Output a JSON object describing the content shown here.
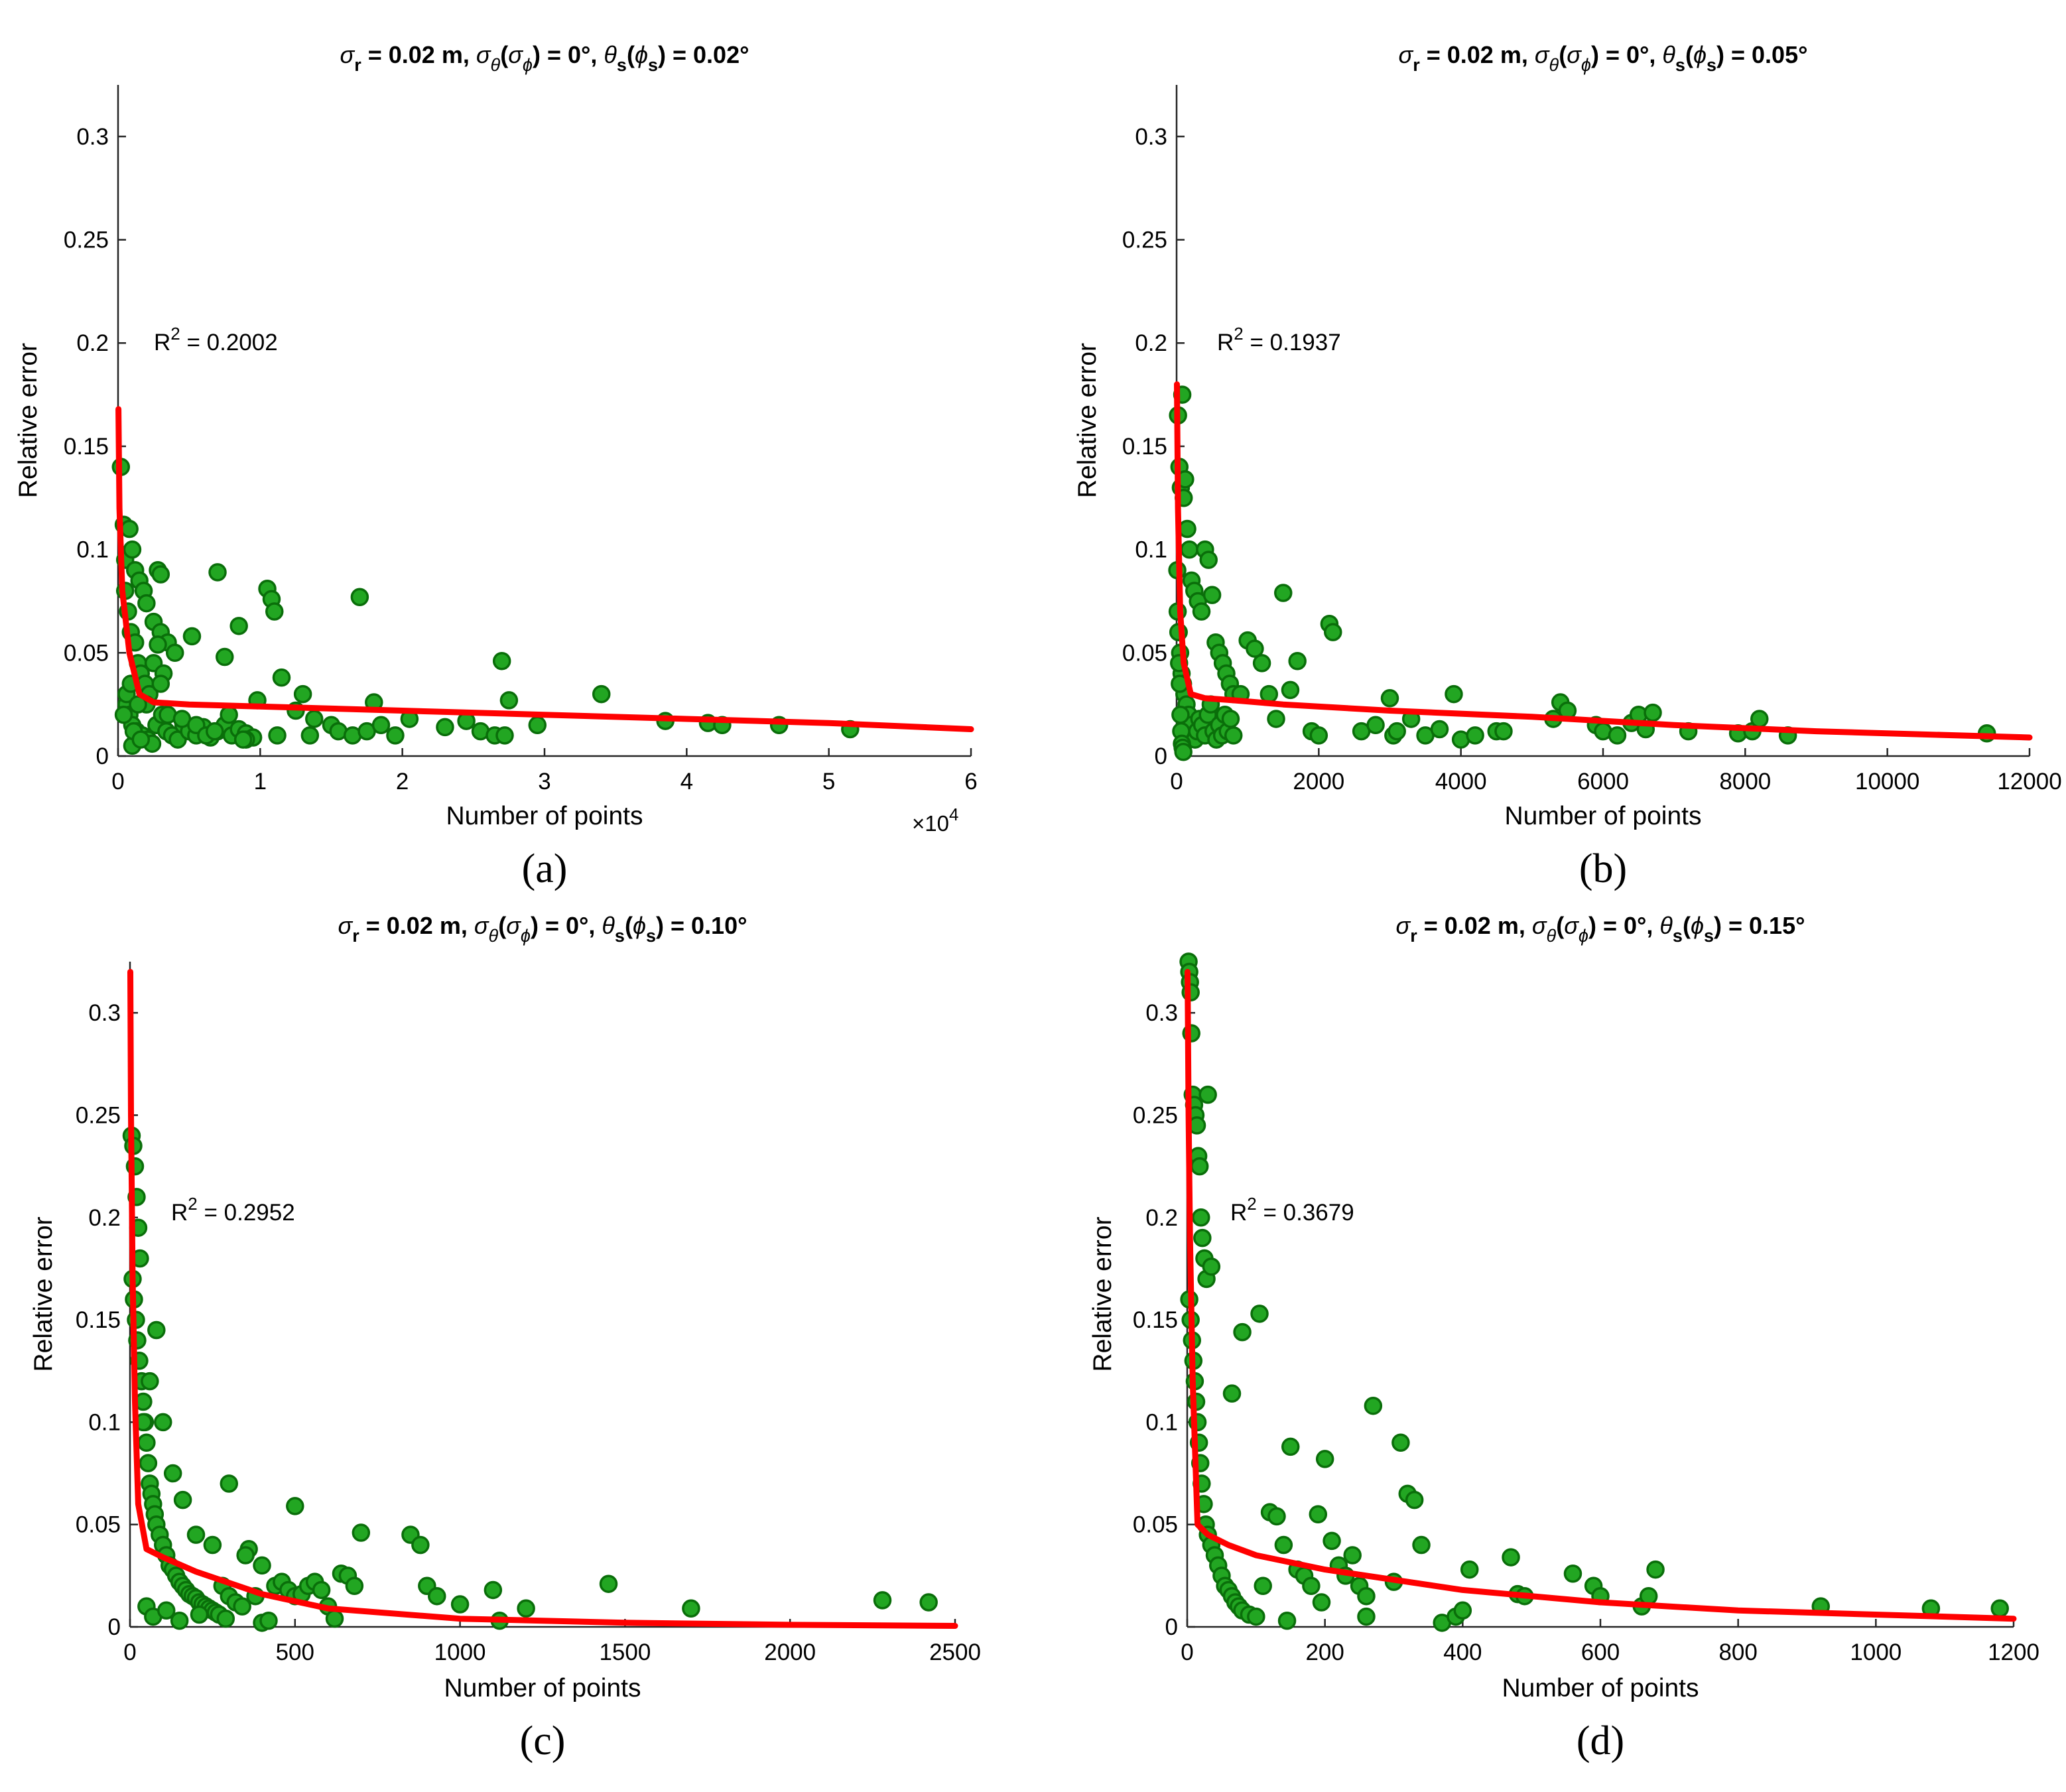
{
  "figure": {
    "panels": [
      "a",
      "b",
      "c",
      "d"
    ]
  },
  "colors": {
    "points_fill": "#22a622",
    "points_stroke": "#0a6e0a",
    "fit_line": "#ff0000",
    "axis": "#262626",
    "text": "#000000"
  },
  "chart_data": [
    {
      "id": "a",
      "type": "scatter",
      "title": "σ_r = 0.02 m, σ_θ(σ_ϕ) = 0°, θ_s(ϕ_s) = 0.02°",
      "title_parts": {
        "sub_r": "r",
        "eq1": " = 0.02 m, ",
        "sub_theta": "θ",
        "sub_phi": "ϕ",
        "eq2": ") = 0°, ",
        "sub_s1": "s",
        "sub_s2": "s",
        "eq3": ") = 0.02°"
      },
      "caption": "(a)",
      "xlabel": "Number of points",
      "ylabel": "Relative error",
      "x_multiplier": "×10",
      "x_multiplier_exp": "4",
      "xlim": [
        0,
        6
      ],
      "ylim": [
        0,
        0.325
      ],
      "xticks": [
        0,
        1,
        2,
        3,
        4,
        5,
        6
      ],
      "xtick_labels": [
        "0",
        "1",
        "2",
        "3",
        "4",
        "5",
        "6"
      ],
      "yticks": [
        0,
        0.05,
        0.1,
        0.15,
        0.2,
        0.25,
        0.3
      ],
      "ytick_labels": [
        "0",
        "0.05",
        "0.1",
        "0.15",
        "0.2",
        "0.25",
        "0.3"
      ],
      "r2_label": "R",
      "r2_exp": "2",
      "r2_value": " = 0.2002",
      "fit": {
        "x": [
          0.003,
          0.01,
          0.03,
          0.08,
          0.15,
          0.25,
          0.5,
          1,
          2,
          3,
          4,
          5,
          6
        ],
        "y": [
          0.168,
          0.12,
          0.08,
          0.05,
          0.03,
          0.026,
          0.025,
          0.024,
          0.022,
          0.02,
          0.018,
          0.016,
          0.013
        ]
      },
      "points": {
        "x": [
          0.02,
          0.04,
          0.05,
          0.08,
          0.1,
          0.12,
          0.15,
          0.18,
          0.2,
          0.25,
          0.3,
          0.35,
          0.4,
          0.05,
          0.07,
          0.09,
          0.12,
          0.14,
          0.16,
          0.19,
          0.22,
          0.25,
          0.28,
          0.3,
          0.32,
          0.06,
          0.08,
          0.1,
          0.13,
          0.17,
          0.21,
          0.24,
          0.27,
          0.31,
          0.34,
          0.38,
          0.42,
          0.46,
          0.5,
          0.55,
          0.6,
          0.65,
          0.7,
          0.75,
          0.8,
          0.85,
          0.9,
          0.95,
          0.28,
          0.3,
          0.52,
          0.7,
          0.75,
          0.85,
          0.9,
          1.05,
          1.08,
          1.1,
          1.15,
          1.3,
          1.35,
          1.5,
          1.55,
          1.65,
          1.7,
          1.75,
          1.8,
          1.85,
          1.95,
          2.05,
          2.3,
          2.45,
          2.55,
          2.65,
          2.7,
          2.72,
          2.75,
          2.95,
          3.4,
          3.85,
          4.15,
          4.25,
          4.65,
          5.15,
          0.1,
          0.2,
          0.35,
          0.45,
          0.55,
          0.62,
          0.68,
          0.78,
          0.88,
          0.98,
          1.12,
          1.25,
          1.38,
          0.04,
          0.06,
          0.09,
          0.11,
          0.14,
          0.16
        ],
        "y": [
          0.14,
          0.112,
          0.095,
          0.11,
          0.1,
          0.09,
          0.085,
          0.08,
          0.074,
          0.065,
          0.06,
          0.055,
          0.05,
          0.08,
          0.07,
          0.06,
          0.055,
          0.045,
          0.04,
          0.035,
          0.03,
          0.045,
          0.09,
          0.088,
          0.04,
          0.025,
          0.02,
          0.015,
          0.012,
          0.01,
          0.008,
          0.006,
          0.015,
          0.02,
          0.012,
          0.01,
          0.008,
          0.015,
          0.012,
          0.01,
          0.014,
          0.009,
          0.012,
          0.015,
          0.01,
          0.013,
          0.011,
          0.009,
          0.054,
          0.035,
          0.058,
          0.089,
          0.048,
          0.063,
          0.008,
          0.081,
          0.076,
          0.07,
          0.038,
          0.03,
          0.01,
          0.015,
          0.012,
          0.01,
          0.077,
          0.012,
          0.026,
          0.015,
          0.01,
          0.018,
          0.014,
          0.017,
          0.012,
          0.01,
          0.046,
          0.01,
          0.027,
          0.015,
          0.03,
          0.017,
          0.016,
          0.015,
          0.015,
          0.013,
          0.005,
          0.025,
          0.02,
          0.018,
          0.015,
          0.01,
          0.012,
          0.02,
          0.008,
          0.027,
          0.01,
          0.022,
          0.018,
          0.02,
          0.03,
          0.035,
          0.012,
          0.025,
          0.008
        ]
      }
    },
    {
      "id": "b",
      "type": "scatter",
      "title": "σ_r = 0.02 m, σ_θ(σ_ϕ) = 0°, θ_s(ϕ_s) = 0.05°",
      "title_parts": {
        "sub_r": "r",
        "eq1": " = 0.02 m, ",
        "sub_theta": "θ",
        "sub_phi": "ϕ",
        "eq2": ") = 0°, ",
        "sub_s1": "s",
        "sub_s2": "s",
        "eq3": ") = 0.05°"
      },
      "caption": "(b)",
      "xlabel": "Number of points",
      "ylabel": "Relative error",
      "xlim": [
        0,
        12000
      ],
      "ylim": [
        0,
        0.325
      ],
      "xticks": [
        0,
        2000,
        4000,
        6000,
        8000,
        10000,
        12000
      ],
      "xtick_labels": [
        "0",
        "2000",
        "4000",
        "6000",
        "8000",
        "10000",
        "12000"
      ],
      "yticks": [
        0,
        0.05,
        0.1,
        0.15,
        0.2,
        0.25,
        0.3
      ],
      "ytick_labels": [
        "0",
        "0.05",
        "0.1",
        "0.15",
        "0.2",
        "0.25",
        "0.3"
      ],
      "r2_label": "R",
      "r2_exp": "2",
      "r2_value": " = 0.1937",
      "fit": {
        "x": [
          5,
          20,
          50,
          100,
          200,
          400,
          800,
          1500,
          3000,
          5000,
          7000,
          9000,
          12000
        ],
        "y": [
          0.18,
          0.12,
          0.07,
          0.045,
          0.03,
          0.028,
          0.027,
          0.025,
          0.022,
          0.019,
          0.015,
          0.012,
          0.009
        ]
      },
      "points": {
        "x": [
          20,
          40,
          60,
          80,
          100,
          120,
          150,
          180,
          210,
          250,
          300,
          350,
          400,
          450,
          500,
          550,
          600,
          650,
          700,
          750,
          800,
          30,
          50,
          70,
          90,
          110,
          140,
          170,
          200,
          230,
          260,
          290,
          320,
          360,
          400,
          440,
          480,
          520,
          560,
          600,
          640,
          680,
          720,
          760,
          800,
          900,
          1000,
          1100,
          1200,
          1300,
          1400,
          1500,
          1600,
          1700,
          1900,
          2000,
          2150,
          2200,
          2600,
          2800,
          3000,
          3050,
          3100,
          3300,
          3500,
          3700,
          3900,
          4000,
          4200,
          4500,
          4600,
          5300,
          5400,
          5500,
          5900,
          6000,
          6200,
          6400,
          6500,
          6600,
          6700,
          7200,
          7900,
          8100,
          8200,
          8600,
          11400,
          10,
          15,
          25,
          35,
          45,
          55,
          65,
          75,
          85,
          95
        ],
        "y": [
          0.165,
          0.14,
          0.13,
          0.175,
          0.125,
          0.134,
          0.11,
          0.1,
          0.085,
          0.08,
          0.075,
          0.07,
          0.1,
          0.095,
          0.078,
          0.055,
          0.05,
          0.045,
          0.04,
          0.035,
          0.03,
          0.06,
          0.05,
          0.04,
          0.035,
          0.03,
          0.025,
          0.02,
          0.015,
          0.01,
          0.008,
          0.012,
          0.018,
          0.015,
          0.01,
          0.02,
          0.025,
          0.012,
          0.008,
          0.015,
          0.01,
          0.02,
          0.012,
          0.018,
          0.01,
          0.03,
          0.056,
          0.052,
          0.045,
          0.03,
          0.018,
          0.079,
          0.032,
          0.046,
          0.012,
          0.01,
          0.064,
          0.06,
          0.012,
          0.015,
          0.028,
          0.01,
          0.012,
          0.018,
          0.01,
          0.013,
          0.03,
          0.008,
          0.01,
          0.012,
          0.012,
          0.018,
          0.026,
          0.022,
          0.015,
          0.012,
          0.01,
          0.016,
          0.02,
          0.013,
          0.021,
          0.012,
          0.011,
          0.012,
          0.018,
          0.01,
          0.011,
          0.09,
          0.07,
          0.06,
          0.045,
          0.035,
          0.02,
          0.012,
          0.006,
          0.004,
          0.002
        ]
      }
    },
    {
      "id": "c",
      "type": "scatter",
      "title": "σ_r = 0.02 m, σ_θ(σ_ϕ) = 0°, θ_s(ϕ_s) = 0.10°",
      "title_parts": {
        "sub_r": "r",
        "eq1": " = 0.02 m, ",
        "sub_theta": "θ",
        "sub_phi": "ϕ",
        "eq2": ") = 0°, ",
        "sub_s1": "s",
        "sub_s2": "s",
        "eq3": ") = 0.10°"
      },
      "caption": "(c)",
      "xlabel": "Number of points",
      "ylabel": "Relative error",
      "xlim": [
        0,
        2500
      ],
      "ylim": [
        0,
        0.325
      ],
      "xticks": [
        0,
        500,
        1000,
        1500,
        2000,
        2500
      ],
      "xtick_labels": [
        "0",
        "500",
        "1000",
        "1500",
        "2000",
        "2500"
      ],
      "yticks": [
        0,
        0.05,
        0.1,
        0.15,
        0.2,
        0.25,
        0.3
      ],
      "ytick_labels": [
        "0",
        "0.05",
        "0.1",
        "0.15",
        "0.2",
        "0.25",
        "0.3"
      ],
      "r2_label": "R",
      "r2_exp": "2",
      "r2_value": " = 0.2952",
      "fit": {
        "x": [
          1,
          3,
          8,
          15,
          25,
          50,
          100,
          200,
          400,
          600,
          1000,
          1500,
          2000,
          2500
        ],
        "y": [
          0.32,
          0.25,
          0.17,
          0.11,
          0.06,
          0.038,
          0.034,
          0.027,
          0.016,
          0.009,
          0.004,
          0.002,
          0.001,
          0.0005
        ]
      },
      "points": {
        "x": [
          5,
          10,
          15,
          20,
          25,
          30,
          8,
          12,
          18,
          22,
          28,
          35,
          40,
          45,
          50,
          55,
          60,
          65,
          70,
          75,
          80,
          90,
          100,
          110,
          120,
          130,
          140,
          150,
          160,
          170,
          180,
          190,
          200,
          210,
          220,
          230,
          240,
          250,
          260,
          270,
          280,
          300,
          320,
          340,
          360,
          380,
          400,
          420,
          440,
          460,
          480,
          500,
          520,
          540,
          560,
          580,
          600,
          620,
          640,
          660,
          680,
          700,
          850,
          880,
          900,
          930,
          1000,
          1100,
          1120,
          1200,
          1450,
          1700,
          2280,
          2420,
          40,
          60,
          80,
          100,
          130,
          160,
          200,
          250,
          300,
          350,
          400,
          50,
          70,
          110,
          150,
          210,
          290,
          500
        ],
        "y": [
          0.24,
          0.235,
          0.225,
          0.21,
          0.195,
          0.18,
          0.17,
          0.16,
          0.15,
          0.14,
          0.13,
          0.12,
          0.11,
          0.1,
          0.09,
          0.08,
          0.07,
          0.065,
          0.06,
          0.055,
          0.05,
          0.045,
          0.04,
          0.035,
          0.03,
          0.028,
          0.025,
          0.022,
          0.02,
          0.018,
          0.016,
          0.015,
          0.014,
          0.012,
          0.011,
          0.01,
          0.009,
          0.008,
          0.007,
          0.006,
          0.02,
          0.015,
          0.012,
          0.01,
          0.038,
          0.015,
          0.002,
          0.003,
          0.02,
          0.022,
          0.018,
          0.015,
          0.016,
          0.02,
          0.022,
          0.018,
          0.01,
          0.004,
          0.026,
          0.025,
          0.02,
          0.046,
          0.045,
          0.04,
          0.02,
          0.015,
          0.011,
          0.018,
          0.003,
          0.009,
          0.021,
          0.009,
          0.013,
          0.012,
          0.1,
          0.12,
          0.145,
          0.1,
          0.075,
          0.062,
          0.045,
          0.04,
          0.07,
          0.035,
          0.03,
          0.01,
          0.005,
          0.008,
          0.003,
          0.006,
          0.004,
          0.059
        ]
      }
    },
    {
      "id": "d",
      "type": "scatter",
      "title": "σ_r = 0.02 m, σ_θ(σ_ϕ) = 0°, θ_s(ϕ_s) = 0.15°",
      "title_parts": {
        "sub_r": "r",
        "eq1": " = 0.02 m, ",
        "sub_theta": "θ",
        "sub_phi": "ϕ",
        "eq2": ") = 0°, ",
        "sub_s1": "s",
        "sub_s2": "s",
        "eq3": ") = 0.15°"
      },
      "caption": "(d)",
      "xlabel": "Number of points",
      "ylabel": "Relative error",
      "xlim": [
        0,
        1200
      ],
      "ylim": [
        0,
        0.325
      ],
      "xticks": [
        0,
        200,
        400,
        600,
        800,
        1000,
        1200
      ],
      "xtick_labels": [
        "0",
        "200",
        "400",
        "600",
        "800",
        "1000",
        "1200"
      ],
      "yticks": [
        0,
        0.05,
        0.1,
        0.15,
        0.2,
        0.25,
        0.3
      ],
      "ytick_labels": [
        "0",
        "0.05",
        "0.1",
        "0.15",
        "0.2",
        "0.25",
        "0.3"
      ],
      "r2_label": "R",
      "r2_exp": "2",
      "r2_value": " = 0.3679",
      "fit": {
        "x": [
          0.5,
          1,
          2,
          4,
          8,
          15,
          30,
          60,
          100,
          200,
          400,
          600,
          800,
          1000,
          1200
        ],
        "y": [
          0.32,
          0.3,
          0.25,
          0.19,
          0.12,
          0.05,
          0.045,
          0.04,
          0.035,
          0.028,
          0.018,
          0.012,
          0.008,
          0.006,
          0.004
        ]
      },
      "points": {
        "x": [
          2,
          3,
          4,
          5,
          6,
          8,
          10,
          12,
          14,
          16,
          18,
          20,
          22,
          25,
          28,
          30,
          3,
          5,
          7,
          9,
          11,
          13,
          15,
          17,
          19,
          21,
          24,
          27,
          30,
          35,
          40,
          45,
          50,
          55,
          60,
          65,
          70,
          75,
          80,
          90,
          100,
          110,
          120,
          130,
          140,
          150,
          160,
          170,
          180,
          190,
          200,
          210,
          220,
          230,
          240,
          250,
          260,
          270,
          300,
          310,
          320,
          330,
          340,
          370,
          390,
          400,
          410,
          470,
          480,
          490,
          560,
          590,
          600,
          660,
          670,
          680,
          920,
          1080,
          1180,
          35,
          65,
          80,
          105,
          145,
          195,
          260
        ],
        "y": [
          0.325,
          0.32,
          0.315,
          0.31,
          0.29,
          0.26,
          0.255,
          0.25,
          0.245,
          0.23,
          0.225,
          0.2,
          0.19,
          0.18,
          0.17,
          0.26,
          0.16,
          0.15,
          0.14,
          0.13,
          0.12,
          0.11,
          0.1,
          0.09,
          0.08,
          0.07,
          0.06,
          0.05,
          0.045,
          0.04,
          0.035,
          0.03,
          0.025,
          0.02,
          0.018,
          0.015,
          0.012,
          0.01,
          0.008,
          0.006,
          0.005,
          0.02,
          0.056,
          0.054,
          0.04,
          0.088,
          0.028,
          0.025,
          0.02,
          0.055,
          0.082,
          0.042,
          0.03,
          0.025,
          0.035,
          0.02,
          0.015,
          0.108,
          0.022,
          0.09,
          0.065,
          0.062,
          0.04,
          0.002,
          0.005,
          0.008,
          0.028,
          0.034,
          0.016,
          0.015,
          0.026,
          0.02,
          0.015,
          0.01,
          0.015,
          0.028,
          0.01,
          0.009,
          0.009,
          0.176,
          0.114,
          0.144,
          0.153,
          0.003,
          0.012,
          0.005
        ]
      }
    }
  ]
}
